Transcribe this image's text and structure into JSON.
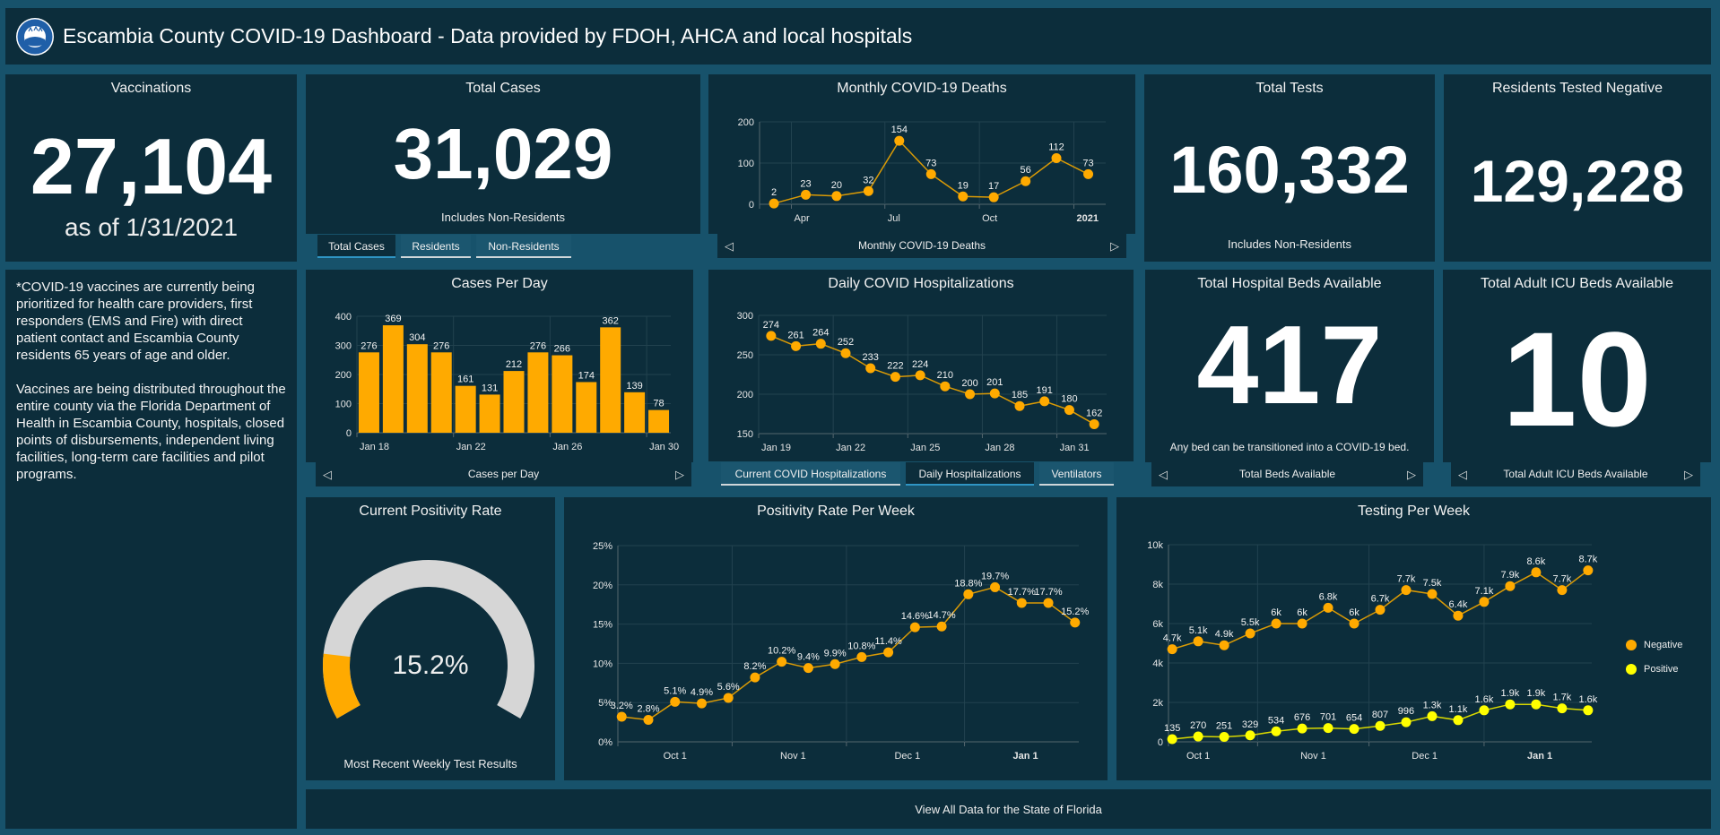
{
  "header": {
    "title": "Escambia County COVID-19 Dashboard - Data provided by FDOH, AHCA and local hospitals",
    "logo_text": "ESCAMBIA COUNTY FLORIDA"
  },
  "colors": {
    "background": "#17526b",
    "panel": "#0c2d3b",
    "accent": "#ffaa00",
    "positive": "#ffff00",
    "gauge_track": "#d6d6d6",
    "active_tab": "#2f95c4"
  },
  "vaccinations": {
    "title": "Vaccinations",
    "value": "27,104",
    "subtitle": "as of 1/31/2021"
  },
  "total_cases": {
    "title": "Total Cases",
    "value": "31,029",
    "note": "Includes Non-Residents",
    "tabs": [
      {
        "label": "Total Cases",
        "active": true
      },
      {
        "label": "Residents",
        "active": false
      },
      {
        "label": "Non-Residents",
        "active": false
      }
    ]
  },
  "monthly_deaths": {
    "title": "Monthly COVID-19 Deaths",
    "nav_label": "Monthly COVID-19 Deaths"
  },
  "total_tests": {
    "title": "Total Tests",
    "value": "160,332",
    "note": "Includes Non-Residents"
  },
  "residents_negative": {
    "title": "Residents Tested Negative",
    "value": "129,228"
  },
  "vaccine_note": {
    "paragraphs": [
      "*COVID-19 vaccines are currently being prioritized for health care providers, first responders (EMS and Fire) with direct patient contact and Escambia County residents 65 years of age and older.",
      "Vaccines are being distributed throughout the entire county via the Florida Department of Health in Escambia County, hospitals, closed points of disbursements, independent living facilities, long-term care facilities and pilot programs."
    ]
  },
  "cases_per_day": {
    "title": "Cases Per Day",
    "nav_label": "Cases per Day"
  },
  "hospitalizations": {
    "title": "Daily COVID Hospitalizations",
    "tabs": [
      {
        "label": "Current COVID Hospitalizations",
        "active": false
      },
      {
        "label": "Daily Hospitalizations",
        "active": true
      },
      {
        "label": "Ventilators",
        "active": false
      }
    ]
  },
  "hospital_beds": {
    "title": "Total Hospital Beds Available",
    "value": "417",
    "note": "Any bed can be transitioned into a COVID-19 bed.",
    "nav_label": "Total Beds Available"
  },
  "icu_beds": {
    "title": "Total Adult ICU Beds Available",
    "value": "10",
    "nav_label": "Total Adult ICU Beds Available"
  },
  "positivity": {
    "title": "Current Positivity Rate",
    "value": "15.2%",
    "percent": 15.2,
    "gauge_max": 100,
    "subtitle": "Most Recent Weekly Test Results"
  },
  "positivity_week": {
    "title": "Positivity Rate Per Week"
  },
  "testing_week": {
    "title": "Testing Per Week",
    "legend": [
      {
        "label": "Negative",
        "color": "#ffaa00"
      },
      {
        "label": "Positive",
        "color": "#ffff00"
      }
    ]
  },
  "footer_link": "View All Data for the State of Florida",
  "chart_data": [
    {
      "type": "line",
      "title": "Monthly COVID-19 Deaths",
      "x": [
        "2020-03",
        "2020-04",
        "2020-05",
        "2020-06",
        "2020-07",
        "2020-08",
        "2020-09",
        "2020-10",
        "2020-11",
        "2020-12",
        "2021-01"
      ],
      "xlim": [
        "2020-03",
        "2021-02"
      ],
      "ylim": [
        0,
        200
      ],
      "yticks": [
        {
          "v": 0,
          "label": "0"
        },
        {
          "v": 100,
          "label": "100"
        },
        {
          "v": 200,
          "label": "200"
        }
      ],
      "xticks": [
        {
          "date": "2020-04",
          "label": "Apr"
        },
        {
          "date": "2020-07",
          "label": "Jul"
        },
        {
          "date": "2020-10",
          "label": "Oct"
        },
        {
          "date": "2021-01",
          "label": "2021",
          "bold": true
        }
      ],
      "grid": true,
      "series": [
        {
          "values": [
            2,
            23,
            20,
            32,
            154,
            73,
            19,
            17,
            56,
            112,
            73
          ],
          "labels": [
            "2",
            "23",
            "20",
            "32",
            "154",
            "73",
            "19",
            "17",
            "56",
            "112",
            "73"
          ],
          "color": "#ffaa00"
        }
      ]
    },
    {
      "type": "bar",
      "title": "Cases Per Day",
      "x": [
        "2021-01-18",
        "2021-01-19",
        "2021-01-20",
        "2021-01-21",
        "2021-01-22",
        "2021-01-23",
        "2021-01-24",
        "2021-01-25",
        "2021-01-26",
        "2021-01-27",
        "2021-01-28",
        "2021-01-29",
        "2021-01-30"
      ],
      "xlim": [
        "2021-01-18",
        "2021-01-31"
      ],
      "ylim": [
        0,
        400
      ],
      "yticks": [
        {
          "v": 0,
          "label": "0"
        },
        {
          "v": 100,
          "label": "100"
        },
        {
          "v": 200,
          "label": "200"
        },
        {
          "v": 300,
          "label": "300"
        },
        {
          "v": 400,
          "label": "400"
        }
      ],
      "xticks": [
        {
          "date": "2021-01-18",
          "label": "Jan 18"
        },
        {
          "date": "2021-01-22",
          "label": "Jan 22"
        },
        {
          "date": "2021-01-26",
          "label": "Jan 26"
        },
        {
          "date": "2021-01-30",
          "label": "Jan 30"
        }
      ],
      "grid": true,
      "series": [
        {
          "values": [
            276,
            369,
            304,
            276,
            161,
            131,
            212,
            276,
            266,
            174,
            362,
            139,
            78
          ],
          "labels": [
            "276",
            "369",
            "304",
            "276",
            "161",
            "131",
            "212",
            "276",
            "266",
            "174",
            "362",
            "139",
            "78"
          ],
          "color": "#ffaa00"
        }
      ]
    },
    {
      "type": "line",
      "title": "Daily COVID Hospitalizations",
      "x": [
        "2021-01-19",
        "2021-01-20",
        "2021-01-21",
        "2021-01-22",
        "2021-01-23",
        "2021-01-24",
        "2021-01-25",
        "2021-01-26",
        "2021-01-27",
        "2021-01-28",
        "2021-01-29",
        "2021-01-30",
        "2021-01-31",
        "2021-02-01"
      ],
      "xlim": [
        "2021-01-19",
        "2021-02-02"
      ],
      "ylim": [
        150,
        300
      ],
      "yticks": [
        {
          "v": 150,
          "label": "150"
        },
        {
          "v": 200,
          "label": "200"
        },
        {
          "v": 250,
          "label": "250"
        },
        {
          "v": 300,
          "label": "300"
        }
      ],
      "xticks": [
        {
          "date": "2021-01-19",
          "label": "Jan 19"
        },
        {
          "date": "2021-01-22",
          "label": "Jan 22"
        },
        {
          "date": "2021-01-25",
          "label": "Jan 25"
        },
        {
          "date": "2021-01-28",
          "label": "Jan 28"
        },
        {
          "date": "2021-01-31",
          "label": "Jan 31"
        }
      ],
      "grid": true,
      "series": [
        {
          "values": [
            274,
            261,
            264,
            252,
            233,
            222,
            224,
            210,
            200,
            201,
            185,
            191,
            180,
            162
          ],
          "labels": [
            "274",
            "261",
            "264",
            "252",
            "233",
            "222",
            "224",
            "210",
            "200",
            "201",
            "185",
            "191",
            "180",
            "162"
          ],
          "color": "#ffaa00"
        }
      ]
    },
    {
      "type": "line",
      "title": "Positivity Rate Per Week",
      "x": [
        "2020-09-17",
        "2020-09-24",
        "2020-10-01",
        "2020-10-08",
        "2020-10-15",
        "2020-10-22",
        "2020-10-29",
        "2020-11-05",
        "2020-11-12",
        "2020-11-19",
        "2020-11-26",
        "2020-12-03",
        "2020-12-10",
        "2020-12-17",
        "2020-12-24",
        "2020-12-31",
        "2021-01-07",
        "2021-01-14"
      ],
      "xlim": [
        "2020-09-16",
        "2021-01-15"
      ],
      "ylim": [
        0,
        25
      ],
      "yticks": [
        {
          "v": 0,
          "label": "0%"
        },
        {
          "v": 5,
          "label": "5%"
        },
        {
          "v": 10,
          "label": "10%"
        },
        {
          "v": 15,
          "label": "15%"
        },
        {
          "v": 20,
          "label": "20%"
        },
        {
          "v": 25,
          "label": "25%"
        }
      ],
      "xticks": [
        {
          "date": "2020-10-01",
          "label": "Oct 1"
        },
        {
          "date": "2020-11-01",
          "label": "Nov 1"
        },
        {
          "date": "2020-12-01",
          "label": "Dec 1"
        },
        {
          "date": "2021-01-01",
          "label": "Jan 1",
          "bold": true
        }
      ],
      "xgrid": [
        "2020-10-16",
        "2020-11-15",
        "2020-12-16"
      ],
      "grid": true,
      "series": [
        {
          "values": [
            3.2,
            2.8,
            5.1,
            4.9,
            5.6,
            8.2,
            10.2,
            9.4,
            9.9,
            10.8,
            11.4,
            14.6,
            14.7,
            18.8,
            19.7,
            17.7,
            17.7,
            15.2
          ],
          "labels": [
            "3.2%",
            "2.8%",
            "5.1%",
            "4.9%",
            "5.6%",
            "8.2%",
            "10.2%",
            "9.4%",
            "9.9%",
            "10.8%",
            "11.4%",
            "14.6%",
            "14.7%",
            "18.8%",
            "19.7%",
            "17.7%",
            "17.7%",
            "15.2%"
          ],
          "color": "#ffaa00"
        }
      ]
    },
    {
      "type": "line",
      "title": "Testing Per Week",
      "x": [
        "2020-09-24",
        "2020-10-01",
        "2020-10-08",
        "2020-10-15",
        "2020-10-22",
        "2020-10-29",
        "2020-11-05",
        "2020-11-12",
        "2020-11-19",
        "2020-11-26",
        "2020-12-03",
        "2020-12-10",
        "2020-12-17",
        "2020-12-24",
        "2020-12-31",
        "2021-01-07",
        "2021-01-14"
      ],
      "xlim": [
        "2020-09-23",
        "2021-01-15"
      ],
      "ylim": [
        0,
        10000
      ],
      "yticks": [
        {
          "v": 0,
          "label": "0"
        },
        {
          "v": 2000,
          "label": "2k"
        },
        {
          "v": 4000,
          "label": "4k"
        },
        {
          "v": 6000,
          "label": "6k"
        },
        {
          "v": 8000,
          "label": "8k"
        },
        {
          "v": 10000,
          "label": "10k"
        }
      ],
      "xticks": [
        {
          "date": "2020-10-01",
          "label": "Oct 1"
        },
        {
          "date": "2020-11-01",
          "label": "Nov 1"
        },
        {
          "date": "2020-12-01",
          "label": "Dec 1"
        },
        {
          "date": "2021-01-01",
          "label": "Jan 1",
          "bold": true
        }
      ],
      "xgrid": [
        "2020-10-17",
        "2020-11-16",
        "2020-12-17"
      ],
      "grid": true,
      "legend": "right",
      "series": [
        {
          "name": "Negative",
          "values": [
            4700,
            5100,
            4900,
            5500,
            6000,
            6000,
            6800,
            6000,
            6700,
            7700,
            7500,
            6400,
            7100,
            7900,
            8600,
            7700,
            8700
          ],
          "labels": [
            "4.7k",
            "5.1k",
            "4.9k",
            "5.5k",
            "6k",
            "6k",
            "6.8k",
            "6k",
            "6.7k",
            "7.7k",
            "7.5k",
            "6.4k",
            "7.1k",
            "7.9k",
            "8.6k",
            "7.7k",
            "8.7k"
          ],
          "color": "#ffaa00"
        },
        {
          "name": "Positive",
          "values": [
            135,
            270,
            251,
            329,
            534,
            676,
            701,
            654,
            807,
            996,
            1300,
            1100,
            1600,
            1900,
            1900,
            1700,
            1600
          ],
          "labels": [
            "135",
            "270",
            "251",
            "329",
            "534",
            "676",
            "701",
            "654",
            "807",
            "996",
            "1.3k",
            "1.1k",
            "1.6k",
            "1.9k",
            "1.9k",
            "1.7k",
            "1.6k"
          ],
          "color": "#ffff00"
        }
      ]
    }
  ]
}
